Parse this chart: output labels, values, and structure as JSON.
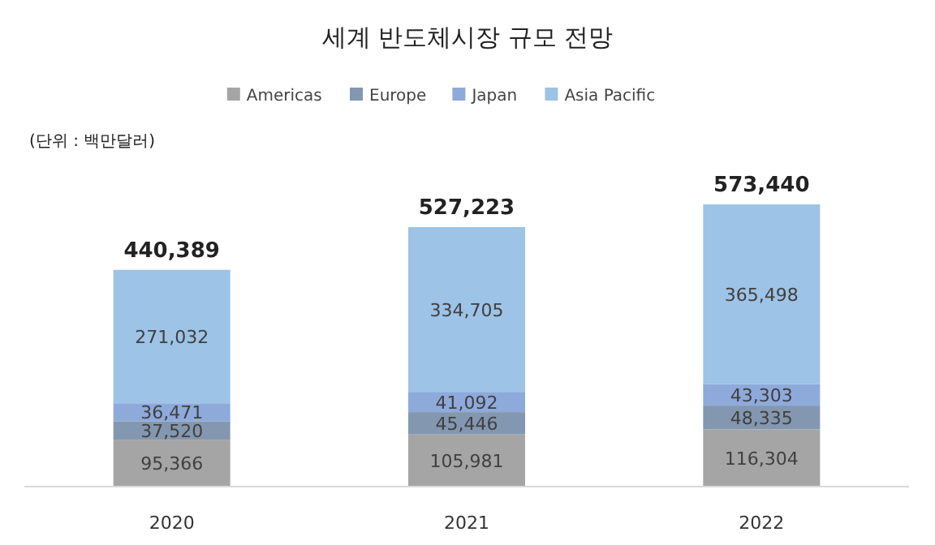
{
  "chart_data": {
    "type": "bar",
    "stacked": true,
    "title": "세계 반도체시장 규모 전망",
    "annotations": [
      "(단위 : 백만달러)"
    ],
    "categories": [
      "2020",
      "2021",
      "2022"
    ],
    "series": [
      {
        "name": "Americas",
        "color": "#a5a5a5",
        "values": [
          95366,
          105981,
          116304
        ],
        "value_labels": [
          "95,366",
          "105,981",
          "116,304"
        ]
      },
      {
        "name": "Europe",
        "color": "#8497b0",
        "values": [
          37520,
          45446,
          48335
        ],
        "value_labels": [
          "37,520",
          "45,446",
          "48,335"
        ]
      },
      {
        "name": "Japan",
        "color": "#8eaadb",
        "values": [
          36471,
          41092,
          43303
        ],
        "value_labels": [
          "36,471",
          "41,092",
          "43,303"
        ]
      },
      {
        "name": "Asia Pacific",
        "color": "#9dc3e6",
        "values": [
          271032,
          334705,
          365498
        ],
        "value_labels": [
          "271,032",
          "334,705",
          "365,498"
        ]
      }
    ],
    "totals": [
      "440,389",
      "527,223",
      "573,440"
    ],
    "legend": "top"
  }
}
